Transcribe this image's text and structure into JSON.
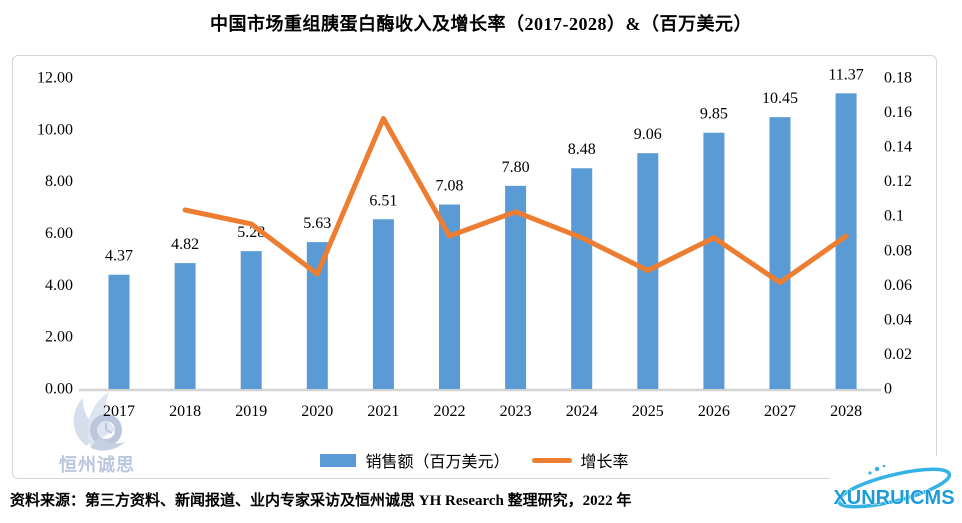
{
  "title": "中国市场重组胰蛋白酶收入及增长率（2017-2028）&（百万美元）",
  "chart_data": {
    "type": "bar",
    "combo": "bar+line, dual axis",
    "categories": [
      "2017",
      "2018",
      "2019",
      "2020",
      "2021",
      "2022",
      "2023",
      "2024",
      "2025",
      "2026",
      "2027",
      "2028"
    ],
    "series": [
      {
        "name": "销售额（百万美元）",
        "type": "bar",
        "axis": "left",
        "color": "#5B9BD5",
        "values": [
          4.37,
          4.82,
          5.28,
          5.63,
          6.51,
          7.08,
          7.8,
          8.48,
          9.06,
          9.85,
          10.45,
          11.37
        ],
        "labels": [
          "4.37",
          "4.82",
          "5.28",
          "5.63",
          "6.51",
          "7.08",
          "7.80",
          "8.48",
          "9.06",
          "9.85",
          "10.45",
          "11.37"
        ]
      },
      {
        "name": "增长率",
        "type": "line",
        "axis": "right",
        "color": "#ED7D31",
        "values": [
          null,
          0.103,
          0.095,
          0.066,
          0.156,
          0.088,
          0.102,
          0.087,
          0.068,
          0.087,
          0.061,
          0.088
        ]
      }
    ],
    "left_axis": {
      "min": 0,
      "max": 12,
      "ticks": [
        "0.00",
        "2.00",
        "4.00",
        "6.00",
        "8.00",
        "10.00",
        "12.00"
      ]
    },
    "right_axis": {
      "min": 0,
      "max": 0.18,
      "ticks": [
        "0",
        "0.02",
        "0.04",
        "0.06",
        "0.08",
        "0.1",
        "0.12",
        "0.14",
        "0.16",
        "0.18"
      ]
    },
    "grid": false,
    "legend_position": "bottom",
    "title": "中国市场重组胰蛋白酶收入及增长率（2017-2028）&（百万美元）"
  },
  "legend": {
    "bar_label": "销售额（百万美元）",
    "line_label": "增长率"
  },
  "watermark": {
    "text": "恒州诚思"
  },
  "brand_logo": {
    "text": "XUNRUICMS"
  },
  "footer": {
    "source_text": "资料来源：第三方资料、新闻报道、业内专家采访及恒州诚思  YH Research 整理研究，2022 年"
  },
  "colors": {
    "bar": "#5B9BD5",
    "line": "#ED7D31",
    "axis_line": "#D3D3D3",
    "frame_border": "#D6D6D6",
    "text": "#000000",
    "watermark": "#B3C0DC",
    "brand_blue": "#2BA7DF"
  }
}
